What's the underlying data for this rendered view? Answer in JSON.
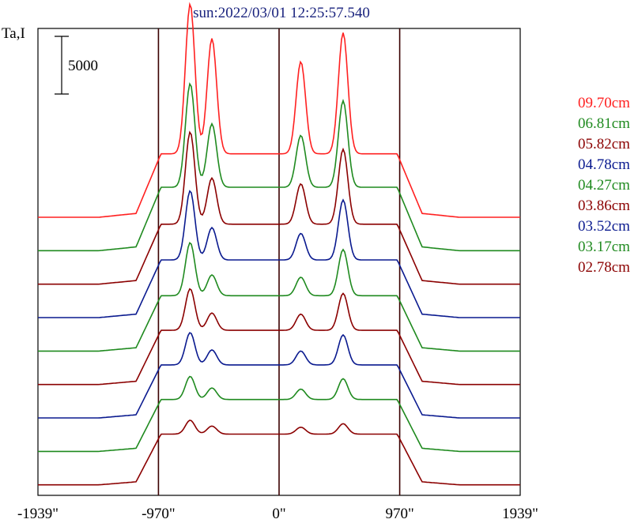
{
  "header": {
    "title": "sun:2022/03/01 12:25:57.540",
    "title_color": "#1a237e"
  },
  "chart_data": {
    "type": "line",
    "title": "sun:2022/03/01 12:25:57.540",
    "ylabel": "Ta,I",
    "scale_bar_label": "5000",
    "scale_bar_value": 5000,
    "xlim": [
      -1939,
      1939
    ],
    "x_ticks": [
      -1939,
      -970,
      0,
      970,
      1939
    ],
    "x_tick_labels": [
      "-1939\"",
      "-970\"",
      "0\"",
      "970\"",
      "1939\""
    ],
    "vertical_lines": [
      -970,
      0,
      970
    ],
    "series": [
      {
        "name": "09.70cm",
        "color": "#ff2020",
        "baseline": 0,
        "plateau": 5500,
        "peaks": [
          {
            "x": -715,
            "h": 13000
          },
          {
            "x": -540,
            "h": 10000
          },
          {
            "x": 175,
            "h": 8000
          },
          {
            "x": 515,
            "h": 10500
          }
        ]
      },
      {
        "name": "06.81cm",
        "color": "#1f8a1f",
        "baseline": -2900,
        "plateau": 5500,
        "peaks": [
          {
            "x": -715,
            "h": 9000
          },
          {
            "x": -540,
            "h": 5500
          },
          {
            "x": 175,
            "h": 4500
          },
          {
            "x": 515,
            "h": 7500
          }
        ]
      },
      {
        "name": "05.82cm",
        "color": "#8b0000",
        "baseline": -5800,
        "plateau": 5200,
        "peaks": [
          {
            "x": -715,
            "h": 8000
          },
          {
            "x": -540,
            "h": 4000
          },
          {
            "x": 175,
            "h": 3500
          },
          {
            "x": 515,
            "h": 6500
          }
        ]
      },
      {
        "name": "04.78cm",
        "color": "#0a1a8f",
        "baseline": -8700,
        "plateau": 5000,
        "peaks": [
          {
            "x": -715,
            "h": 6000
          },
          {
            "x": -540,
            "h": 2800
          },
          {
            "x": 175,
            "h": 2300
          },
          {
            "x": 515,
            "h": 5200
          }
        ]
      },
      {
        "name": "04.27cm",
        "color": "#1f8a1f",
        "baseline": -11600,
        "plateau": 4800,
        "peaks": [
          {
            "x": -715,
            "h": 4600
          },
          {
            "x": -540,
            "h": 1800
          },
          {
            "x": 175,
            "h": 1600
          },
          {
            "x": 515,
            "h": 4000
          }
        ]
      },
      {
        "name": "03.86cm",
        "color": "#8b0000",
        "baseline": -14500,
        "plateau": 4700,
        "peaks": [
          {
            "x": -715,
            "h": 3600
          },
          {
            "x": -540,
            "h": 1500
          },
          {
            "x": 175,
            "h": 1400
          },
          {
            "x": 515,
            "h": 3200
          }
        ]
      },
      {
        "name": "03.52cm",
        "color": "#0a1a8f",
        "baseline": -17400,
        "plateau": 4600,
        "peaks": [
          {
            "x": -715,
            "h": 2800
          },
          {
            "x": -540,
            "h": 1300
          },
          {
            "x": 175,
            "h": 1200
          },
          {
            "x": 515,
            "h": 2600
          }
        ]
      },
      {
        "name": "03.17cm",
        "color": "#1f8a1f",
        "baseline": -20300,
        "plateau": 4500,
        "peaks": [
          {
            "x": -715,
            "h": 2000
          },
          {
            "x": -540,
            "h": 1000
          },
          {
            "x": 175,
            "h": 900
          },
          {
            "x": 515,
            "h": 1800
          }
        ]
      },
      {
        "name": "02.78cm",
        "color": "#8b0000",
        "baseline": -23200,
        "plateau": 4400,
        "peaks": [
          {
            "x": -715,
            "h": 1200
          },
          {
            "x": -540,
            "h": 700
          },
          {
            "x": 175,
            "h": 600
          },
          {
            "x": 515,
            "h": 900
          }
        ]
      }
    ]
  }
}
